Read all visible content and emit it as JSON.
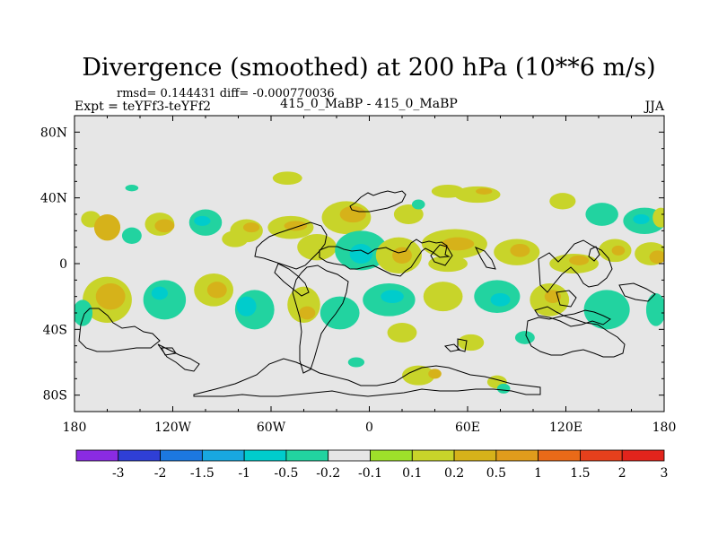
{
  "chart_data": {
    "type": "heatmap",
    "title": "Divergence (smoothed) at 200 hPa (10**6 m/s)",
    "stats": "rmsd= 0.144431 diff= -0.000770036",
    "left_label": "Expt = teYFf3-teYFf2",
    "center_label": "415_0_MaBP - 415_0_MaBP",
    "right_label": "JJA",
    "x_range": [
      -180,
      180
    ],
    "y_range": [
      -90,
      90
    ],
    "x_ticks": [
      {
        "value": -180,
        "label": "180"
      },
      {
        "value": -120,
        "label": "120W"
      },
      {
        "value": -60,
        "label": "60W"
      },
      {
        "value": 0,
        "label": "0"
      },
      {
        "value": 60,
        "label": "60E"
      },
      {
        "value": 120,
        "label": "120E"
      },
      {
        "value": 180,
        "label": "180"
      }
    ],
    "y_ticks": [
      {
        "value": 80,
        "label": "80N"
      },
      {
        "value": 40,
        "label": "40N"
      },
      {
        "value": 0,
        "label": "0"
      },
      {
        "value": -40,
        "label": "40S"
      },
      {
        "value": -80,
        "label": "80S"
      }
    ],
    "colorbar": {
      "labels": [
        "-3",
        "-2",
        "-1.5",
        "-1",
        "-0.5",
        "-0.2",
        "-0.1",
        "0.1",
        "0.2",
        "0.5",
        "1",
        "1.5",
        "2",
        "3"
      ],
      "colors": [
        "#8a2be2",
        "#2f3fd6",
        "#1c78e0",
        "#18a8e0",
        "#00cccc",
        "#22d3a0",
        "#e6e6e6",
        "#9ee02a",
        "#c8d42a",
        "#d6b21a",
        "#e09c1c",
        "#ea6a18",
        "#e6401c",
        "#e2241c"
      ]
    },
    "regions": [
      {
        "lon": -170,
        "lat": 27,
        "rx": 6,
        "ry": 5,
        "level": "0.2"
      },
      {
        "lon": -160,
        "lat": 22,
        "rx": 8,
        "ry": 8,
        "level": "0.5"
      },
      {
        "lon": -145,
        "lat": 17,
        "rx": 6,
        "ry": 5,
        "level": "-0.2"
      },
      {
        "lon": -128,
        "lat": 24,
        "rx": 9,
        "ry": 7,
        "level": "0.2"
      },
      {
        "lon": -125,
        "lat": 23,
        "rx": 6,
        "ry": 4,
        "level": "0.5"
      },
      {
        "lon": -100,
        "lat": 25,
        "rx": 10,
        "ry": 8,
        "level": "-0.2"
      },
      {
        "lon": -102,
        "lat": 26,
        "rx": 5,
        "ry": 3,
        "level": "-0.5"
      },
      {
        "lon": -75,
        "lat": 20,
        "rx": 10,
        "ry": 7,
        "level": "0.2"
      },
      {
        "lon": -72,
        "lat": 22,
        "rx": 5,
        "ry": 3,
        "level": "0.5"
      },
      {
        "lon": -48,
        "lat": 22,
        "rx": 14,
        "ry": 7,
        "level": "0.2"
      },
      {
        "lon": -45,
        "lat": 23,
        "rx": 7,
        "ry": 3,
        "level": "0.5"
      },
      {
        "lon": -50,
        "lat": 52,
        "rx": 9,
        "ry": 4,
        "level": "0.2"
      },
      {
        "lon": -145,
        "lat": 46,
        "rx": 4,
        "ry": 2,
        "level": "-0.2"
      },
      {
        "lon": -14,
        "lat": 28,
        "rx": 15,
        "ry": 10,
        "level": "0.2"
      },
      {
        "lon": -10,
        "lat": 30,
        "rx": 8,
        "ry": 5,
        "level": "0.5"
      },
      {
        "lon": 24,
        "lat": 30,
        "rx": 9,
        "ry": 6,
        "level": "0.2"
      },
      {
        "lon": 30,
        "lat": 36,
        "rx": 4,
        "ry": 3,
        "level": "-0.2"
      },
      {
        "lon": 48,
        "lat": 44,
        "rx": 10,
        "ry": 4,
        "level": "0.2"
      },
      {
        "lon": 66,
        "lat": 42,
        "rx": 14,
        "ry": 5,
        "level": "0.2"
      },
      {
        "lon": 70,
        "lat": 44,
        "rx": 5,
        "ry": 2,
        "level": "0.5"
      },
      {
        "lon": 118,
        "lat": 38,
        "rx": 8,
        "ry": 5,
        "level": "0.2"
      },
      {
        "lon": 142,
        "lat": 30,
        "rx": 10,
        "ry": 7,
        "level": "-0.2"
      },
      {
        "lon": 168,
        "lat": 26,
        "rx": 13,
        "ry": 8,
        "level": "-0.2"
      },
      {
        "lon": 166,
        "lat": 27,
        "rx": 5,
        "ry": 3,
        "level": "-0.5"
      },
      {
        "lon": 178,
        "lat": 28,
        "rx": 5,
        "ry": 6,
        "level": "0.2"
      },
      {
        "lon": -32,
        "lat": 10,
        "rx": 12,
        "ry": 8,
        "level": "0.2"
      },
      {
        "lon": -5,
        "lat": 8,
        "rx": 16,
        "ry": 12,
        "level": "-0.2"
      },
      {
        "lon": -5,
        "lat": 6,
        "rx": 7,
        "ry": 6,
        "level": "-0.5"
      },
      {
        "lon": 18,
        "lat": 5,
        "rx": 14,
        "ry": 11,
        "level": "0.2"
      },
      {
        "lon": 20,
        "lat": 5,
        "rx": 6,
        "ry": 5,
        "level": "0.5"
      },
      {
        "lon": 52,
        "lat": 12,
        "rx": 20,
        "ry": 9,
        "level": "0.2"
      },
      {
        "lon": 54,
        "lat": 12,
        "rx": 10,
        "ry": 4,
        "level": "0.5"
      },
      {
        "lon": 48,
        "lat": 0,
        "rx": 12,
        "ry": 5,
        "level": "0.2"
      },
      {
        "lon": 90,
        "lat": 7,
        "rx": 14,
        "ry": 8,
        "level": "0.2"
      },
      {
        "lon": 92,
        "lat": 8,
        "rx": 6,
        "ry": 4,
        "level": "0.5"
      },
      {
        "lon": 125,
        "lat": 0,
        "rx": 15,
        "ry": 6,
        "level": "0.2"
      },
      {
        "lon": 128,
        "lat": 2,
        "rx": 6,
        "ry": 3,
        "level": "0.5"
      },
      {
        "lon": 150,
        "lat": 8,
        "rx": 10,
        "ry": 7,
        "level": "0.2"
      },
      {
        "lon": 152,
        "lat": 8,
        "rx": 4,
        "ry": 3,
        "level": "0.5"
      },
      {
        "lon": 172,
        "lat": 6,
        "rx": 10,
        "ry": 7,
        "level": "0.2"
      },
      {
        "lon": 176,
        "lat": 4,
        "rx": 5,
        "ry": 4,
        "level": "0.5"
      },
      {
        "lon": -82,
        "lat": 15,
        "rx": 8,
        "ry": 5,
        "level": "0.2"
      },
      {
        "lon": -160,
        "lat": -22,
        "rx": 15,
        "ry": 14,
        "level": "0.2"
      },
      {
        "lon": -158,
        "lat": -20,
        "rx": 9,
        "ry": 8,
        "level": "0.5"
      },
      {
        "lon": -175,
        "lat": -30,
        "rx": 6,
        "ry": 8,
        "level": "-0.2"
      },
      {
        "lon": -125,
        "lat": -22,
        "rx": 13,
        "ry": 12,
        "level": "-0.2"
      },
      {
        "lon": -128,
        "lat": -18,
        "rx": 5,
        "ry": 4,
        "level": "-0.5"
      },
      {
        "lon": -95,
        "lat": -16,
        "rx": 12,
        "ry": 10,
        "level": "0.2"
      },
      {
        "lon": -93,
        "lat": -16,
        "rx": 6,
        "ry": 5,
        "level": "0.5"
      },
      {
        "lon": -70,
        "lat": -28,
        "rx": 12,
        "ry": 12,
        "level": "-0.2"
      },
      {
        "lon": -75,
        "lat": -26,
        "rx": 6,
        "ry": 6,
        "level": "-0.5"
      },
      {
        "lon": -40,
        "lat": -25,
        "rx": 10,
        "ry": 11,
        "level": "0.2"
      },
      {
        "lon": -38,
        "lat": -30,
        "rx": 5,
        "ry": 4,
        "level": "0.5"
      },
      {
        "lon": -18,
        "lat": -30,
        "rx": 12,
        "ry": 10,
        "level": "-0.2"
      },
      {
        "lon": 12,
        "lat": -22,
        "rx": 16,
        "ry": 10,
        "level": "-0.2"
      },
      {
        "lon": 14,
        "lat": -20,
        "rx": 7,
        "ry": 4,
        "level": "-0.5"
      },
      {
        "lon": 45,
        "lat": -20,
        "rx": 12,
        "ry": 9,
        "level": "0.2"
      },
      {
        "lon": 78,
        "lat": -20,
        "rx": 14,
        "ry": 10,
        "level": "-0.2"
      },
      {
        "lon": 80,
        "lat": -22,
        "rx": 6,
        "ry": 4,
        "level": "-0.5"
      },
      {
        "lon": 110,
        "lat": -22,
        "rx": 12,
        "ry": 10,
        "level": "0.2"
      },
      {
        "lon": 112,
        "lat": -20,
        "rx": 5,
        "ry": 4,
        "level": "0.5"
      },
      {
        "lon": 145,
        "lat": -28,
        "rx": 14,
        "ry": 12,
        "level": "-0.2"
      },
      {
        "lon": 175,
        "lat": -28,
        "rx": 6,
        "ry": 10,
        "level": "-0.2"
      },
      {
        "lon": 20,
        "lat": -42,
        "rx": 9,
        "ry": 6,
        "level": "0.2"
      },
      {
        "lon": 62,
        "lat": -48,
        "rx": 8,
        "ry": 5,
        "level": "0.2"
      },
      {
        "lon": 95,
        "lat": -45,
        "rx": 6,
        "ry": 4,
        "level": "-0.2"
      },
      {
        "lon": -8,
        "lat": -60,
        "rx": 5,
        "ry": 3,
        "level": "-0.2"
      },
      {
        "lon": 30,
        "lat": -68,
        "rx": 10,
        "ry": 6,
        "level": "0.2"
      },
      {
        "lon": 40,
        "lat": -67,
        "rx": 4,
        "ry": 3,
        "level": "0.5"
      },
      {
        "lon": 78,
        "lat": -72,
        "rx": 6,
        "ry": 4,
        "level": "0.2"
      },
      {
        "lon": 82,
        "lat": -76,
        "rx": 4,
        "ry": 3,
        "level": "-0.2"
      }
    ]
  }
}
